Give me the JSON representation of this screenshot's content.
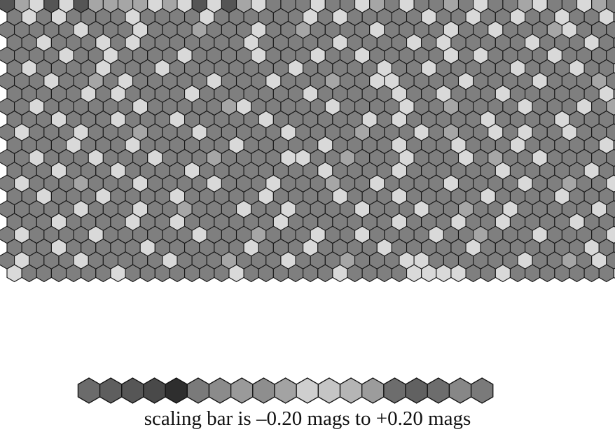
{
  "figure": {
    "caption": "scaling bar is –0.20 mags to +0.20 mags"
  },
  "hex_map": {
    "rows": 22,
    "cols": 42,
    "color_scale": {
      "min_mag": -0.2,
      "max_mag": 0.2,
      "base_color": "#7f7f7f",
      "light_color": "#d9d9d9",
      "mid_light_color": "#a6a6a6",
      "stroke": "#151515"
    },
    "bright_cells": [
      [
        0,
        2
      ],
      [
        0,
        4
      ],
      [
        0,
        10
      ],
      [
        0,
        12
      ],
      [
        0,
        14
      ],
      [
        0,
        17
      ],
      [
        0,
        21
      ],
      [
        0,
        24
      ],
      [
        0,
        27
      ],
      [
        0,
        32
      ],
      [
        0,
        36
      ],
      [
        0,
        39
      ],
      [
        1,
        1
      ],
      [
        1,
        3
      ],
      [
        1,
        8
      ],
      [
        1,
        13
      ],
      [
        1,
        20
      ],
      [
        1,
        22
      ],
      [
        1,
        28
      ],
      [
        1,
        31
      ],
      [
        1,
        34
      ],
      [
        1,
        37
      ],
      [
        1,
        40
      ],
      [
        2,
        5
      ],
      [
        2,
        9
      ],
      [
        2,
        17
      ],
      [
        2,
        25
      ],
      [
        2,
        30
      ],
      [
        2,
        33
      ],
      [
        2,
        38
      ],
      [
        3,
        2
      ],
      [
        3,
        6
      ],
      [
        3,
        8
      ],
      [
        3,
        16
      ],
      [
        3,
        22
      ],
      [
        3,
        27
      ],
      [
        3,
        29
      ],
      [
        3,
        35
      ],
      [
        3,
        39
      ],
      [
        4,
        4
      ],
      [
        4,
        7
      ],
      [
        4,
        12
      ],
      [
        4,
        17
      ],
      [
        4,
        21
      ],
      [
        4,
        24
      ],
      [
        4,
        30
      ],
      [
        4,
        32
      ],
      [
        4,
        37
      ],
      [
        5,
        1
      ],
      [
        5,
        6
      ],
      [
        5,
        10
      ],
      [
        5,
        19
      ],
      [
        5,
        25
      ],
      [
        5,
        28
      ],
      [
        5,
        34
      ],
      [
        5,
        38
      ],
      [
        5,
        41
      ],
      [
        6,
        3
      ],
      [
        6,
        8
      ],
      [
        6,
        14
      ],
      [
        6,
        18
      ],
      [
        6,
        25
      ],
      [
        6,
        26
      ],
      [
        6,
        31
      ],
      [
        6,
        36
      ],
      [
        7,
        5
      ],
      [
        7,
        7
      ],
      [
        7,
        12
      ],
      [
        7,
        20
      ],
      [
        7,
        26
      ],
      [
        7,
        29
      ],
      [
        7,
        33
      ],
      [
        7,
        40
      ],
      [
        8,
        2
      ],
      [
        8,
        9
      ],
      [
        8,
        16
      ],
      [
        8,
        22
      ],
      [
        8,
        27
      ],
      [
        8,
        35
      ],
      [
        8,
        39
      ],
      [
        9,
        3
      ],
      [
        9,
        7
      ],
      [
        9,
        11
      ],
      [
        9,
        17
      ],
      [
        9,
        24
      ],
      [
        9,
        26
      ],
      [
        9,
        32
      ],
      [
        9,
        37
      ],
      [
        10,
        1
      ],
      [
        10,
        5
      ],
      [
        10,
        13
      ],
      [
        10,
        19
      ],
      [
        10,
        28
      ],
      [
        10,
        33
      ],
      [
        10,
        35
      ],
      [
        10,
        38
      ],
      [
        11,
        4
      ],
      [
        11,
        8
      ],
      [
        11,
        15
      ],
      [
        11,
        21
      ],
      [
        11,
        26
      ],
      [
        11,
        30
      ],
      [
        11,
        34
      ],
      [
        11,
        40
      ],
      [
        12,
        2
      ],
      [
        12,
        6
      ],
      [
        12,
        10
      ],
      [
        12,
        19
      ],
      [
        12,
        20
      ],
      [
        12,
        27
      ],
      [
        12,
        31
      ],
      [
        12,
        36
      ],
      [
        13,
        3
      ],
      [
        13,
        7
      ],
      [
        13,
        12
      ],
      [
        13,
        21
      ],
      [
        13,
        26
      ],
      [
        13,
        33
      ],
      [
        13,
        39
      ],
      [
        14,
        1
      ],
      [
        14,
        9
      ],
      [
        14,
        14
      ],
      [
        14,
        18
      ],
      [
        14,
        25
      ],
      [
        14,
        30
      ],
      [
        14,
        35
      ],
      [
        14,
        41
      ],
      [
        15,
        2
      ],
      [
        15,
        6
      ],
      [
        15,
        11
      ],
      [
        15,
        17
      ],
      [
        15,
        22
      ],
      [
        15,
        26
      ],
      [
        15,
        32
      ],
      [
        15,
        37
      ],
      [
        16,
        5
      ],
      [
        16,
        9
      ],
      [
        16,
        16
      ],
      [
        16,
        19
      ],
      [
        16,
        24
      ],
      [
        16,
        28
      ],
      [
        16,
        34
      ],
      [
        16,
        40
      ],
      [
        17,
        3
      ],
      [
        17,
        8
      ],
      [
        17,
        11
      ],
      [
        17,
        18
      ],
      [
        17,
        26
      ],
      [
        17,
        30
      ],
      [
        17,
        33
      ],
      [
        17,
        38
      ],
      [
        18,
        1
      ],
      [
        18,
        6
      ],
      [
        18,
        13
      ],
      [
        18,
        21
      ],
      [
        18,
        24
      ],
      [
        18,
        29
      ],
      [
        18,
        36
      ],
      [
        18,
        41
      ],
      [
        19,
        3
      ],
      [
        19,
        9
      ],
      [
        19,
        16
      ],
      [
        19,
        20
      ],
      [
        19,
        25
      ],
      [
        19,
        31
      ],
      [
        19,
        39
      ],
      [
        20,
        1
      ],
      [
        20,
        5
      ],
      [
        20,
        11
      ],
      [
        20,
        19
      ],
      [
        20,
        27
      ],
      [
        20,
        28
      ],
      [
        20,
        35
      ],
      [
        20,
        40
      ],
      [
        21,
        0
      ],
      [
        21,
        7
      ],
      [
        21,
        15
      ],
      [
        21,
        22
      ],
      [
        21,
        27
      ],
      [
        21,
        28
      ],
      [
        21,
        29
      ],
      [
        21,
        30
      ],
      [
        21,
        33
      ],
      [
        21,
        41
      ]
    ],
    "mid_cells": [
      [
        0,
        1
      ],
      [
        0,
        6
      ],
      [
        0,
        7
      ],
      [
        0,
        8
      ],
      [
        0,
        9
      ],
      [
        0,
        11
      ],
      [
        0,
        16
      ],
      [
        0,
        25
      ],
      [
        0,
        30
      ],
      [
        0,
        35
      ],
      [
        0,
        40
      ],
      [
        2,
        13
      ],
      [
        2,
        20
      ],
      [
        2,
        37
      ],
      [
        6,
        6
      ],
      [
        6,
        22
      ],
      [
        6,
        40
      ],
      [
        8,
        15
      ],
      [
        8,
        30
      ],
      [
        8,
        41
      ],
      [
        10,
        9
      ],
      [
        10,
        24
      ],
      [
        10,
        30
      ],
      [
        12,
        14
      ],
      [
        12,
        23
      ],
      [
        12,
        33
      ],
      [
        14,
        5
      ],
      [
        14,
        22
      ],
      [
        14,
        38
      ],
      [
        16,
        12
      ],
      [
        16,
        31
      ],
      [
        18,
        17
      ],
      [
        18,
        32
      ],
      [
        20,
        15
      ],
      [
        20,
        23
      ],
      [
        20,
        38
      ]
    ],
    "dark_top_cells": [
      [
        0,
        0
      ],
      [
        0,
        3
      ],
      [
        0,
        5
      ],
      [
        0,
        13
      ],
      [
        0,
        15
      ]
    ]
  },
  "scale_bar": {
    "colors": [
      "#6b6b6b",
      "#5e5e5e",
      "#565656",
      "#494949",
      "#2e2e2e",
      "#7a7a7a",
      "#8b8b8b",
      "#9a9a9a",
      "#8e8e8e",
      "#a3a3a3",
      "#cfcfcf",
      "#c5c5c5",
      "#b5b5b5",
      "#9c9c9c",
      "#6d6d6d",
      "#616161",
      "#6d6d6d",
      "#878787",
      "#7a7a7a"
    ]
  }
}
